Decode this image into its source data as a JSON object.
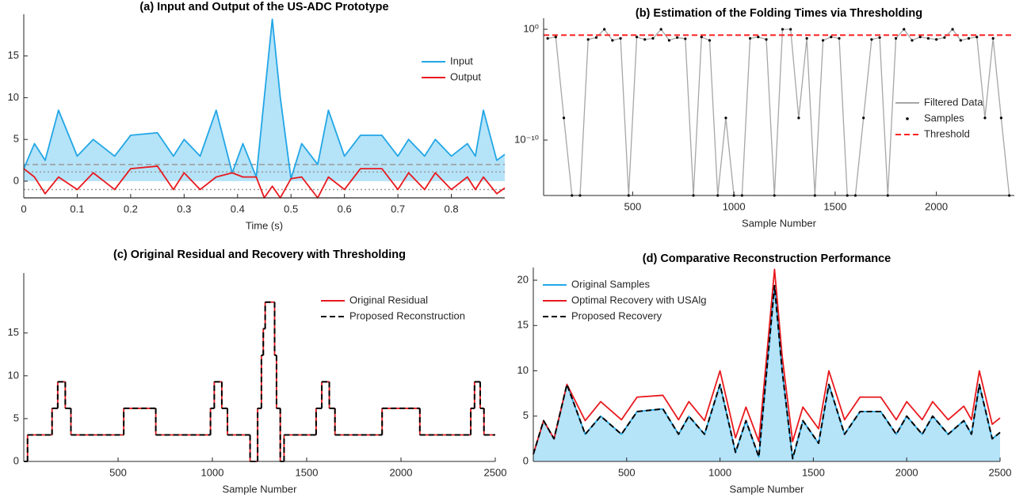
{
  "chart_data": [
    {
      "type": "line",
      "title": "(a) Input and Output of the US-ADC Prototype",
      "xlabel": "Time (s)",
      "x": [
        0,
        0.02,
        0.04,
        0.065,
        0.1,
        0.13,
        0.17,
        0.2,
        0.25,
        0.28,
        0.3,
        0.33,
        0.36,
        0.39,
        0.41,
        0.435,
        0.45,
        0.465,
        0.48,
        0.5,
        0.52,
        0.55,
        0.57,
        0.6,
        0.63,
        0.67,
        0.7,
        0.72,
        0.75,
        0.77,
        0.8,
        0.83,
        0.845,
        0.86,
        0.885,
        0.9
      ],
      "series": [
        {
          "name": "Input",
          "color": "#22a6e6",
          "style": "solid",
          "fill": "#b5e3f8",
          "values": [
            1.5,
            4.5,
            2.5,
            8.5,
            3,
            5,
            3,
            5.5,
            5.8,
            3,
            5,
            3,
            8.5,
            1,
            4.5,
            0.5,
            10,
            19.4,
            10,
            0.3,
            4.5,
            2,
            8.5,
            3,
            5.5,
            5.5,
            3,
            5,
            3,
            5,
            3,
            4.5,
            3,
            8.5,
            2.5,
            3.2
          ]
        },
        {
          "name": "Output",
          "color": "#e8191e",
          "style": "solid",
          "values": [
            1.5,
            0.5,
            -1.5,
            0.5,
            -1,
            1,
            -1,
            1.5,
            1.8,
            -1,
            1,
            -1,
            0.5,
            1,
            0.5,
            0.5,
            -2,
            -0.6,
            -2,
            0.3,
            0.5,
            -2,
            0.5,
            -1,
            1.5,
            1.5,
            -1,
            1,
            -1,
            1,
            -1,
            0.5,
            -1,
            0.5,
            -1.5,
            -0.8
          ]
        }
      ],
      "hlines": [
        {
          "value": 2,
          "style": "dashed"
        },
        {
          "value": 1.1,
          "style": "dotted"
        },
        {
          "value": -1,
          "style": "dotted"
        },
        {
          "value": -2,
          "style": "solid"
        }
      ],
      "xlim": [
        0,
        0.9
      ],
      "ylim": [
        -2,
        20
      ],
      "xticks": [
        0,
        0.1,
        0.2,
        0.3,
        0.4,
        0.5,
        0.6,
        0.7,
        0.8
      ],
      "yticks": [
        0,
        5,
        10,
        15
      ],
      "legend": "right"
    },
    {
      "type": "line",
      "title": "(b) Estimation of the Folding Times via Thresholding",
      "xlabel": "Sample Number",
      "log_y": true,
      "x": [
        80,
        120,
        160,
        200,
        240,
        280,
        320,
        360,
        400,
        440,
        480,
        520,
        560,
        600,
        640,
        680,
        720,
        760,
        800,
        840,
        880,
        920,
        960,
        1000,
        1040,
        1080,
        1120,
        1160,
        1200,
        1240,
        1280,
        1320,
        1360,
        1400,
        1440,
        1480,
        1520,
        1560,
        1600,
        1640,
        1680,
        1720,
        1760,
        1800,
        1840,
        1880,
        1920,
        1960,
        2000,
        2040,
        2080,
        2120,
        2160,
        2200,
        2240,
        2280,
        2320,
        2360
      ],
      "series": [
        {
          "name": "Filtered Data",
          "color": "#a6a6a6",
          "style": "solid",
          "values": [
            0.15,
            0.2,
            1e-08,
            1e-15,
            1e-15,
            0.12,
            0.18,
            1,
            0.1,
            0.15,
            1e-15,
            0.2,
            0.12,
            0.15,
            1,
            0.1,
            0.18,
            0.14,
            1e-15,
            0.2,
            0.1,
            1e-15,
            1e-08,
            1e-15,
            1e-15,
            0.15,
            0.2,
            0.12,
            1e-15,
            1,
            1,
            1e-08,
            0.15,
            1e-15,
            0.1,
            0.2,
            0.15,
            1e-15,
            1e-15,
            1e-08,
            0.12,
            0.18,
            1e-15,
            0.15,
            1,
            0.1,
            0.2,
            0.15,
            0.12,
            0.18,
            1,
            0.1,
            0.15,
            0.2,
            1e-08,
            0.15,
            1e-08,
            1e-15
          ]
        },
        {
          "name": "Samples",
          "color": "#000000",
          "style": "markers",
          "values": [
            0.15,
            0.2,
            1e-08,
            1e-15,
            1e-15,
            0.12,
            0.18,
            1,
            0.1,
            0.15,
            1e-15,
            0.2,
            0.12,
            0.15,
            1,
            0.1,
            0.18,
            0.14,
            1e-15,
            0.2,
            0.1,
            1e-15,
            1e-08,
            1e-15,
            1e-15,
            0.15,
            0.2,
            0.12,
            1e-15,
            1,
            1,
            1e-08,
            0.15,
            1e-15,
            0.1,
            0.2,
            0.15,
            1e-15,
            1e-15,
            1e-08,
            0.12,
            0.18,
            1e-15,
            0.15,
            1,
            0.1,
            0.2,
            0.15,
            0.12,
            0.18,
            1,
            0.1,
            0.15,
            0.2,
            1e-08,
            0.15,
            1e-08,
            1e-15
          ]
        },
        {
          "name": "Threshold",
          "color": "#ff2020",
          "style": "dashed",
          "x": [
            60,
            2385
          ],
          "values": [
            0.3,
            0.3
          ]
        }
      ],
      "xlim": [
        60,
        2385
      ],
      "ylim": [
        1e-15,
        10
      ],
      "xticks": [
        500,
        1000,
        1500,
        2000
      ],
      "yticks": [
        {
          "value": 1,
          "label": "10⁰"
        },
        {
          "value": 1e-10,
          "label": "10⁻¹⁰"
        }
      ],
      "legend": "right"
    },
    {
      "type": "line",
      "title": "(c) Original Residual and Recovery with Thresholding",
      "xlabel": "Sample Number",
      "step": true,
      "x": [
        0,
        20,
        150,
        180,
        220,
        250,
        530,
        700,
        990,
        1010,
        1050,
        1080,
        1200,
        1240,
        1260,
        1270,
        1280,
        1330,
        1340,
        1360,
        1380,
        1550,
        1580,
        1620,
        1650,
        1900,
        2100,
        2370,
        2390,
        2420,
        2440
      ],
      "series": [
        {
          "name": "Original Residual",
          "color": "#e8191e",
          "style": "solid",
          "values": [
            0,
            3.1,
            6.2,
            9.3,
            6.2,
            3.1,
            6.2,
            3.1,
            6.2,
            9.3,
            6.2,
            3.1,
            0,
            6.2,
            12.4,
            15.5,
            18.6,
            12.4,
            6.2,
            0,
            3.1,
            6.2,
            9.3,
            6.2,
            3.1,
            6.2,
            3.1,
            6.2,
            9.3,
            6.2,
            3.1
          ]
        },
        {
          "name": "Proposed Reconstruction",
          "color": "#000000",
          "style": "dashed",
          "values": [
            0,
            3.1,
            6.2,
            9.3,
            6.2,
            3.1,
            6.2,
            3.1,
            6.2,
            9.3,
            6.2,
            3.1,
            0,
            6.2,
            12.4,
            15.5,
            18.6,
            12.4,
            6.2,
            0,
            3.1,
            6.2,
            9.3,
            6.2,
            3.1,
            6.2,
            3.1,
            6.2,
            9.3,
            6.2,
            3.1
          ]
        }
      ],
      "xlim": [
        0,
        2500
      ],
      "ylim": [
        0,
        22
      ],
      "xticks": [
        500,
        1000,
        1500,
        2000,
        2500
      ],
      "yticks": [
        0,
        5,
        10,
        15
      ],
      "legend": "upper right"
    },
    {
      "type": "line",
      "title": "(d) Comparative Reconstruction Performance",
      "xlabel": "Sample Number",
      "x": [
        0,
        55,
        111,
        180,
        278,
        361,
        472,
        556,
        694,
        778,
        833,
        917,
        1000,
        1083,
        1139,
        1208,
        1250,
        1292,
        1333,
        1389,
        1444,
        1528,
        1583,
        1667,
        1750,
        1861,
        1944,
        2000,
        2083,
        2139,
        2222,
        2306,
        2347,
        2389,
        2458,
        2500
      ],
      "series": [
        {
          "name": "Original Samples",
          "color": "#22a6e6",
          "style": "solid",
          "fill": "#b5e3f8",
          "values": [
            0.8,
            4.5,
            2.5,
            8.5,
            3,
            5,
            3,
            5.5,
            5.8,
            3,
            5,
            3,
            8.5,
            1,
            4.5,
            0.5,
            10,
            19.4,
            10,
            0.3,
            4.5,
            2,
            8.5,
            3,
            5.5,
            5.5,
            3,
            5,
            3,
            5,
            3,
            4.5,
            3,
            8.5,
            2.5,
            3.2
          ]
        },
        {
          "name": "Optimal Recovery with USAlg",
          "color": "#e8191e",
          "style": "solid",
          "values": [
            0.8,
            4.5,
            2.5,
            8.5,
            4.5,
            6.6,
            4.6,
            7.1,
            7.3,
            4.6,
            6.6,
            4.5,
            10,
            2.6,
            6,
            2.2,
            11.6,
            21.2,
            11.6,
            2.2,
            6,
            3.6,
            10,
            4.6,
            7.1,
            7.1,
            4.6,
            6.6,
            4.6,
            6.6,
            4.6,
            6.1,
            4.6,
            10,
            4.1,
            4.8
          ]
        },
        {
          "name": "Proposed Recovery",
          "color": "#000000",
          "style": "dashed",
          "values": [
            0.8,
            4.5,
            2.5,
            8.5,
            3,
            5,
            3,
            5.5,
            5.8,
            3,
            5,
            3,
            8.5,
            1,
            4.5,
            0.5,
            10,
            19.4,
            10,
            0.3,
            4.5,
            2,
            8.5,
            3,
            5.5,
            5.5,
            3,
            5,
            3,
            5,
            3,
            4.5,
            3,
            8.5,
            2.5,
            3.2
          ]
        }
      ],
      "xlim": [
        0,
        2500
      ],
      "ylim": [
        0,
        21.4
      ],
      "xticks": [
        500,
        1000,
        1500,
        2000,
        2500
      ],
      "yticks": [
        0,
        5,
        10,
        15,
        20
      ],
      "legend": "upper left"
    }
  ]
}
